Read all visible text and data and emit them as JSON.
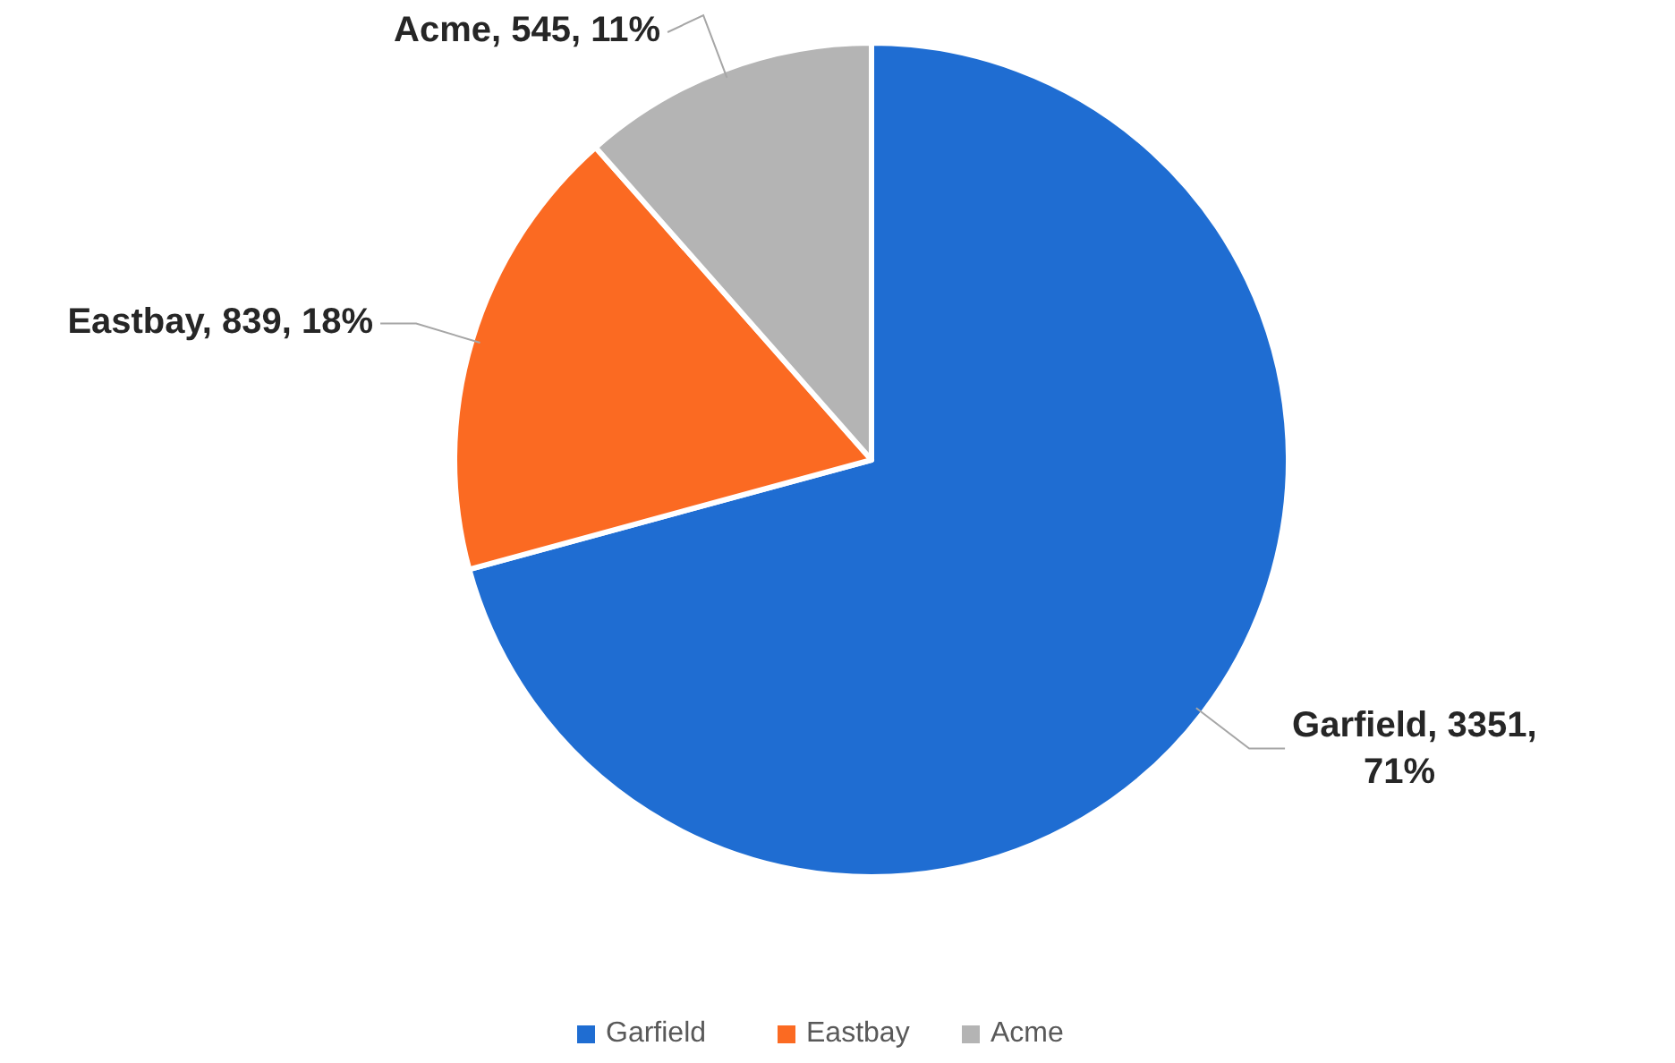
{
  "chart_data": {
    "type": "pie",
    "categories": [
      "Garfield",
      "Eastbay",
      "Acme"
    ],
    "values": [
      3351,
      839,
      545
    ],
    "colors": [
      "#1f6dd2",
      "#fb6a22",
      "#b4b4b4"
    ],
    "value_labels": [
      "Garfield, 3351, 71%",
      "Eastbay, 839, 18%",
      "Acme, 545, 11%"
    ],
    "legend": "bottom"
  }
}
